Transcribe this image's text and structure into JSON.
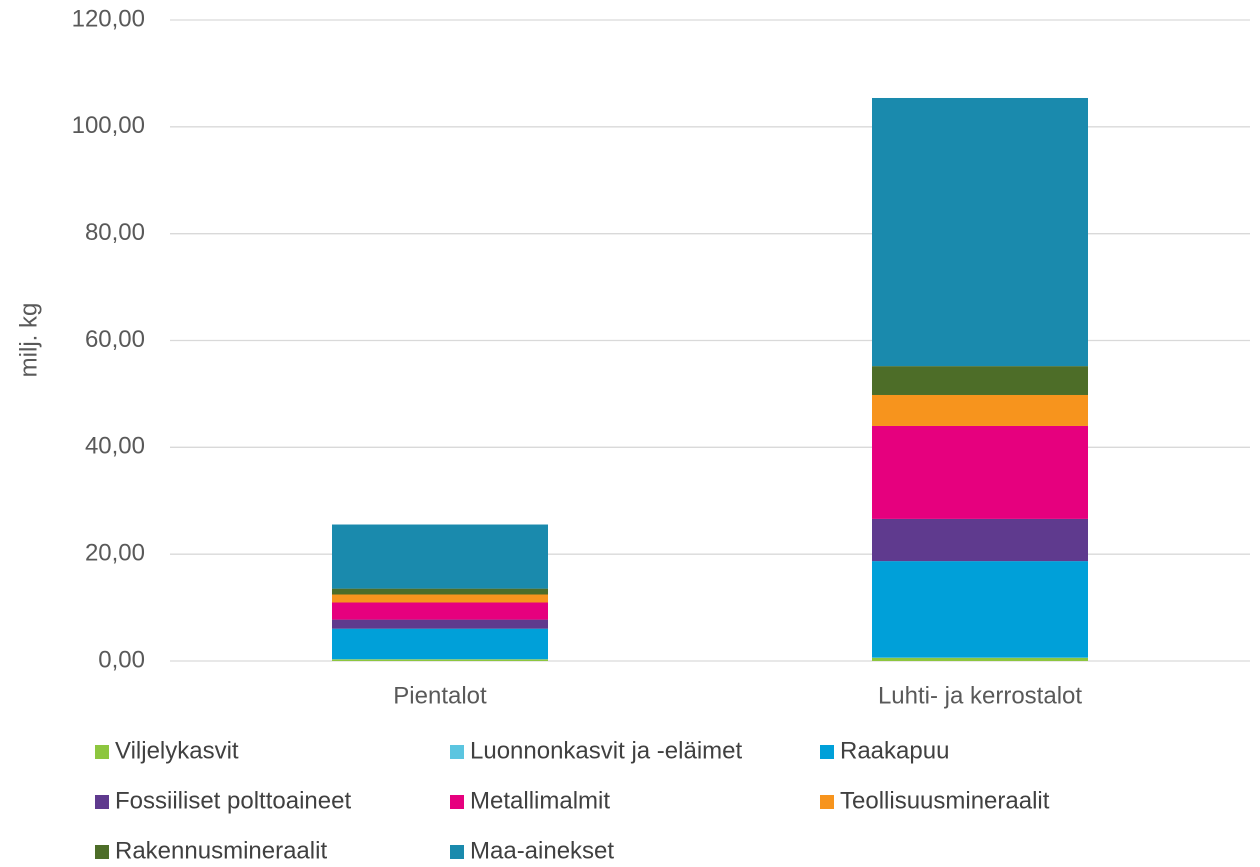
{
  "chart_data": {
    "type": "bar",
    "stacked": true,
    "y_label": "milj. kg",
    "categories": [
      "Pientalot",
      "Luhti- ja kerrostalot"
    ],
    "series": [
      {
        "name": "Viljelykasvit",
        "color": "#8dc63f",
        "values": [
          0.3,
          0.6
        ]
      },
      {
        "name": "Luonnonkasvit ja -eläimet",
        "color": "#5bc5e0",
        "values": [
          0.05,
          0.05
        ]
      },
      {
        "name": "Raakapuu",
        "color": "#00a0d9",
        "values": [
          5.7,
          18.05
        ]
      },
      {
        "name": "Fossiiliset polttoaineet",
        "color": "#5f3a8e",
        "values": [
          1.7,
          7.9
        ]
      },
      {
        "name": "Metallimalmit",
        "color": "#e6007e",
        "values": [
          3.2,
          17.4
        ]
      },
      {
        "name": "Teollisuusmineraalit",
        "color": "#f7941d",
        "values": [
          1.5,
          5.8
        ]
      },
      {
        "name": "Rakennusmineraalit",
        "color": "#4d6d28",
        "values": [
          1.1,
          5.4
        ]
      },
      {
        "name": "Maa-ainekset",
        "color": "#1a8aad",
        "values": [
          12.0,
          50.2
        ]
      }
    ],
    "ylim": [
      0,
      120
    ],
    "yticks": [
      {
        "value": 0,
        "label": "0,00"
      },
      {
        "value": 20,
        "label": "20,00"
      },
      {
        "value": 40,
        "label": "40,00"
      },
      {
        "value": 60,
        "label": "60,00"
      },
      {
        "value": 80,
        "label": "80,00"
      },
      {
        "value": 100,
        "label": "100,00"
      },
      {
        "value": 120,
        "label": "120,00"
      }
    ],
    "grid": true,
    "legend": "bottom"
  }
}
